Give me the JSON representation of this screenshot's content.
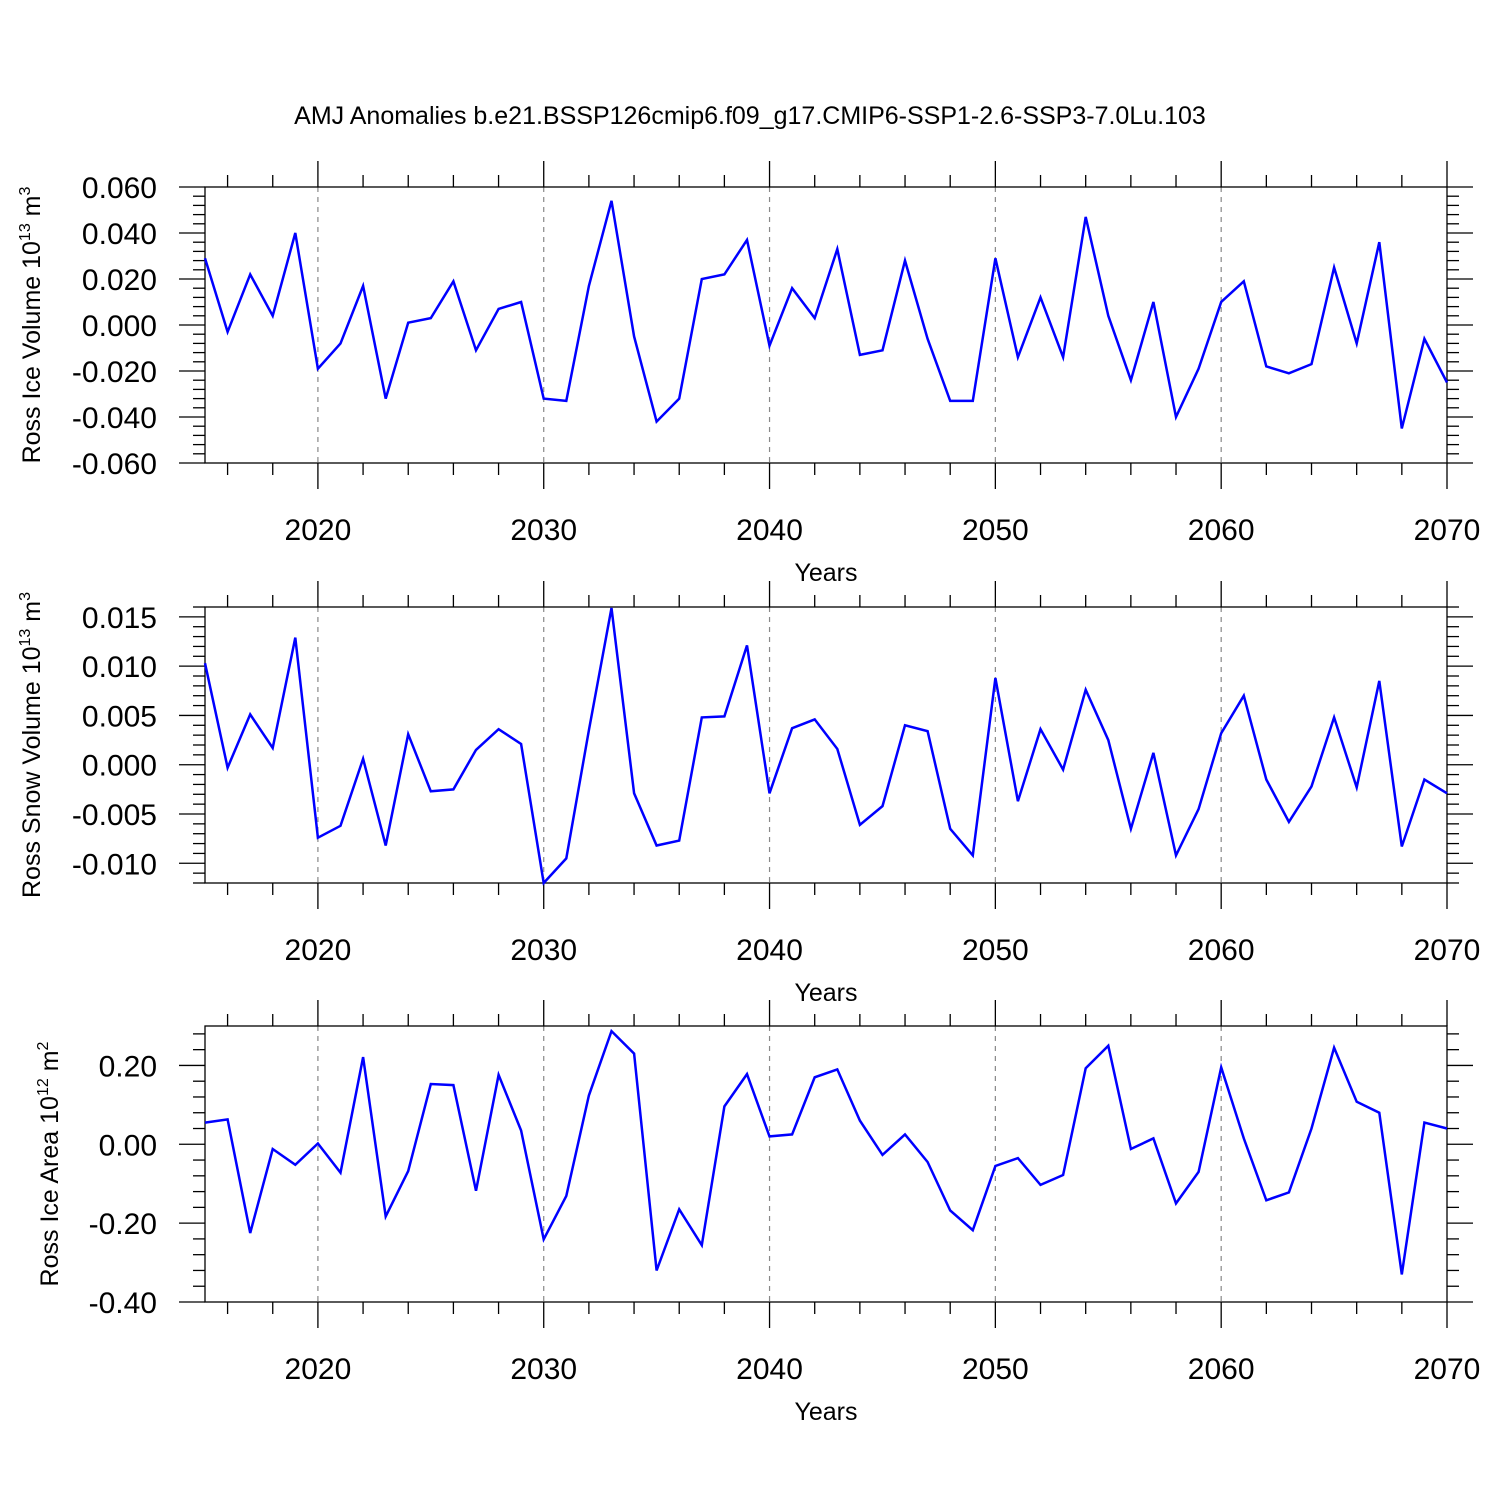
{
  "title": "AMJ Anomalies b.e21.BSSP126cmip6.f09_g17.CMIP6-SSP1-2.6-SSP3-7.0Lu.103",
  "colors": {
    "line": "#0000ff",
    "grid": "#888888",
    "axis": "#000000"
  },
  "chart_data": [
    {
      "type": "line",
      "xlabel": "Years",
      "ylabel": {
        "text": "Ross Ice Volume 10",
        "sup": "13",
        "unit": " m",
        "unit_sup": "3"
      },
      "xlim": [
        2015,
        2070
      ],
      "ylim": [
        -0.06,
        0.06
      ],
      "grid": "x-dashed",
      "xticks": [
        "2020",
        "2030",
        "2040",
        "2050",
        "2060",
        "2070"
      ],
      "yticks": [
        "-0.060",
        "-0.040",
        "-0.020",
        "0.000",
        "0.020",
        "0.040",
        "0.060"
      ],
      "x": [
        2015,
        2016,
        2017,
        2018,
        2019,
        2020,
        2021,
        2022,
        2023,
        2024,
        2025,
        2026,
        2027,
        2028,
        2029,
        2030,
        2031,
        2032,
        2033,
        2034,
        2035,
        2036,
        2037,
        2038,
        2039,
        2040,
        2041,
        2042,
        2043,
        2044,
        2045,
        2046,
        2047,
        2048,
        2049,
        2050,
        2051,
        2052,
        2053,
        2054,
        2055,
        2056,
        2057,
        2058,
        2059,
        2060,
        2061,
        2062,
        2063,
        2064,
        2065,
        2066,
        2067,
        2068,
        2069,
        2070
      ],
      "series": [
        {
          "values": [
            0.029,
            -0.003,
            0.022,
            0.004,
            0.04,
            -0.019,
            -0.008,
            0.017,
            -0.032,
            0.001,
            0.003,
            0.019,
            -0.011,
            0.007,
            0.01,
            -0.032,
            -0.033,
            0.017,
            0.054,
            -0.005,
            -0.042,
            -0.032,
            0.02,
            0.022,
            0.037,
            -0.009,
            0.016,
            0.003,
            0.033,
            -0.013,
            -0.011,
            0.028,
            -0.006,
            -0.033,
            -0.033,
            0.029,
            -0.014,
            0.012,
            -0.014,
            0.047,
            0.004,
            -0.024,
            0.01,
            -0.04,
            -0.019,
            0.01,
            0.019,
            -0.018,
            -0.021,
            -0.017,
            0.025,
            -0.008,
            0.036,
            -0.045,
            -0.006,
            -0.025
          ]
        }
      ]
    },
    {
      "type": "line",
      "xlabel": "Years",
      "ylabel": {
        "text": "Ross Snow Volume 10",
        "sup": "13",
        "unit": " m",
        "unit_sup": "3"
      },
      "xlim": [
        2015,
        2070
      ],
      "ylim": [
        -0.012,
        0.016
      ],
      "grid": "x-dashed",
      "xticks": [
        "2020",
        "2030",
        "2040",
        "2050",
        "2060",
        "2070"
      ],
      "yticks": [
        "-0.010",
        "-0.005",
        "0.000",
        "0.005",
        "0.010",
        "0.015"
      ],
      "x": [
        2015,
        2016,
        2017,
        2018,
        2019,
        2020,
        2021,
        2022,
        2023,
        2024,
        2025,
        2026,
        2027,
        2028,
        2029,
        2030,
        2031,
        2032,
        2033,
        2034,
        2035,
        2036,
        2037,
        2038,
        2039,
        2040,
        2041,
        2042,
        2043,
        2044,
        2045,
        2046,
        2047,
        2048,
        2049,
        2050,
        2051,
        2052,
        2053,
        2054,
        2055,
        2056,
        2057,
        2058,
        2059,
        2060,
        2061,
        2062,
        2063,
        2064,
        2065,
        2066,
        2067,
        2068,
        2069,
        2070
      ],
      "series": [
        {
          "values": [
            0.0103,
            -0.0003,
            0.0051,
            0.0017,
            0.0129,
            -0.0074,
            -0.0062,
            0.0006,
            -0.0082,
            0.0031,
            -0.0027,
            -0.0025,
            0.0015,
            0.0036,
            0.0021,
            -0.012,
            -0.0095,
            0.0035,
            0.0159,
            -0.0029,
            -0.0082,
            -0.0077,
            0.0048,
            0.0049,
            0.0121,
            -0.0029,
            0.0037,
            0.0046,
            0.0016,
            -0.0061,
            -0.0042,
            0.004,
            0.0034,
            -0.0065,
            -0.0092,
            0.0088,
            -0.0037,
            0.0036,
            -0.0005,
            0.0076,
            0.0025,
            -0.0065,
            0.0012,
            -0.0092,
            -0.0045,
            0.0032,
            0.007,
            -0.0015,
            -0.0058,
            -0.0022,
            0.0048,
            -0.0023,
            0.0085,
            -0.0083,
            -0.0015,
            -0.0029
          ]
        }
      ]
    },
    {
      "type": "line",
      "xlabel": "Years",
      "ylabel": {
        "text": "Ross Ice Area 10",
        "sup": "12",
        "unit": " m",
        "unit_sup": "2"
      },
      "xlim": [
        2015,
        2070
      ],
      "ylim": [
        -0.4,
        0.3
      ],
      "grid": "x-dashed",
      "xticks": [
        "2020",
        "2030",
        "2040",
        "2050",
        "2060",
        "2070"
      ],
      "yticks": [
        "-0.40",
        "-0.20",
        "0.00",
        "0.20"
      ],
      "x": [
        2015,
        2016,
        2017,
        2018,
        2019,
        2020,
        2021,
        2022,
        2023,
        2024,
        2025,
        2026,
        2027,
        2028,
        2029,
        2030,
        2031,
        2032,
        2033,
        2034,
        2035,
        2036,
        2037,
        2038,
        2039,
        2040,
        2041,
        2042,
        2043,
        2044,
        2045,
        2046,
        2047,
        2048,
        2049,
        2050,
        2051,
        2052,
        2053,
        2054,
        2055,
        2056,
        2057,
        2058,
        2059,
        2060,
        2061,
        2062,
        2063,
        2064,
        2065,
        2066,
        2067,
        2068,
        2069,
        2070
      ],
      "series": [
        {
          "values": [
            0.055,
            0.063,
            -0.225,
            -0.012,
            -0.052,
            0.002,
            -0.072,
            0.221,
            -0.183,
            -0.068,
            0.153,
            0.15,
            -0.118,
            0.176,
            0.035,
            -0.241,
            -0.131,
            0.124,
            0.287,
            0.23,
            -0.32,
            -0.165,
            -0.256,
            0.096,
            0.178,
            0.02,
            0.025,
            0.17,
            0.19,
            0.06,
            -0.027,
            0.025,
            -0.045,
            -0.168,
            -0.218,
            -0.055,
            -0.035,
            -0.103,
            -0.078,
            0.193,
            0.25,
            -0.012,
            0.015,
            -0.15,
            -0.07,
            0.195,
            0.015,
            -0.142,
            -0.122,
            0.04,
            0.245,
            0.108,
            0.08,
            -0.33,
            0.055,
            0.04
          ]
        }
      ]
    }
  ]
}
